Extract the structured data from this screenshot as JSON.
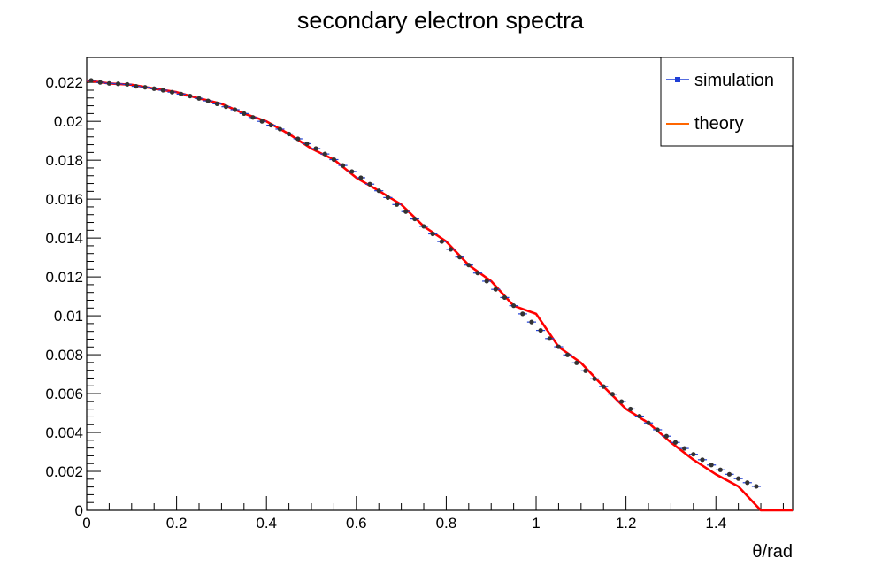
{
  "chart_data": {
    "type": "scatter",
    "title": "secondary electron spectra",
    "xlabel": "θ/rad",
    "ylabel": "",
    "xlim": [
      0,
      1.5708
    ],
    "ylim": [
      0,
      0.0222
    ],
    "x_ticks": [
      "0",
      "0.2",
      "0.4",
      "0.6",
      "0.8",
      "1",
      "1.2",
      "1.4"
    ],
    "x_tick_values": [
      0,
      0.2,
      0.4,
      0.6,
      0.8,
      1.0,
      1.2,
      1.4
    ],
    "y_ticks": [
      "0",
      "0.002",
      "0.004",
      "0.006",
      "0.008",
      "0.01",
      "0.012",
      "0.014",
      "0.016",
      "0.018",
      "0.02",
      "0.022"
    ],
    "y_tick_values": [
      0,
      0.002,
      0.004,
      0.006,
      0.008,
      0.01,
      0.012,
      0.014,
      0.016,
      0.018,
      0.02,
      0.022
    ],
    "grid": false,
    "legend_position": "top-right",
    "series": [
      {
        "name": "simulation",
        "kind": "points",
        "color": "#1f3fd6",
        "marker_color": "#333333",
        "x_error": 0.01,
        "x": [
          0.01,
          0.03,
          0.05,
          0.07,
          0.09,
          0.11,
          0.13,
          0.15,
          0.17,
          0.19,
          0.21,
          0.23,
          0.25,
          0.27,
          0.29,
          0.31,
          0.33,
          0.35,
          0.37,
          0.39,
          0.41,
          0.43,
          0.45,
          0.47,
          0.49,
          0.51,
          0.53,
          0.55,
          0.57,
          0.59,
          0.61,
          0.63,
          0.65,
          0.67,
          0.69,
          0.71,
          0.73,
          0.75,
          0.77,
          0.79,
          0.81,
          0.83,
          0.85,
          0.87,
          0.89,
          0.91,
          0.93,
          0.95,
          0.97,
          0.99,
          1.01,
          1.03,
          1.05,
          1.07,
          1.09,
          1.11,
          1.13,
          1.15,
          1.17,
          1.19,
          1.21,
          1.23,
          1.25,
          1.27,
          1.29,
          1.31,
          1.33,
          1.35,
          1.37,
          1.39,
          1.41,
          1.43,
          1.45,
          1.47,
          1.49
        ],
        "y": [
          0.0221,
          0.022,
          0.02195,
          0.02193,
          0.0219,
          0.0218,
          0.02175,
          0.02168,
          0.0216,
          0.0215,
          0.0214,
          0.0213,
          0.02118,
          0.02105,
          0.0209,
          0.02075,
          0.0206,
          0.0204,
          0.0202,
          0.02,
          0.0198,
          0.0196,
          0.01935,
          0.0191,
          0.01885,
          0.0186,
          0.01832,
          0.01803,
          0.01773,
          0.01742,
          0.0171,
          0.01677,
          0.01643,
          0.01608,
          0.01572,
          0.01536,
          0.01498,
          0.0146,
          0.01421,
          0.01382,
          0.01342,
          0.01302,
          0.01261,
          0.0122,
          0.01178,
          0.01136,
          0.01094,
          0.01052,
          0.0101,
          0.00968,
          0.00925,
          0.00883,
          0.00841,
          0.00799,
          0.00758,
          0.00717,
          0.00676,
          0.00636,
          0.00597,
          0.00559,
          0.00521,
          0.00484,
          0.00449,
          0.00414,
          0.00381,
          0.00349,
          0.00318,
          0.00288,
          0.0026,
          0.00233,
          0.00208,
          0.00185,
          0.00163,
          0.00142,
          0.00123
        ]
      },
      {
        "name": "theory",
        "kind": "line",
        "color": "#ff0000",
        "legend_color": "#ff6600",
        "x": [
          0.0,
          0.05,
          0.1,
          0.15,
          0.2,
          0.25,
          0.3,
          0.35,
          0.4,
          0.45,
          0.5,
          0.55,
          0.6,
          0.65,
          0.7,
          0.75,
          0.8,
          0.85,
          0.9,
          0.95,
          1.0,
          1.05,
          1.1,
          1.15,
          1.2,
          1.25,
          1.3,
          1.35,
          1.4,
          1.45,
          1.5,
          1.55,
          1.5708
        ],
        "y": [
          0.0221,
          0.02195,
          0.02188,
          0.02168,
          0.0215,
          0.02118,
          0.0209,
          0.0204,
          0.02,
          0.01935,
          0.0186,
          0.01803,
          0.0171,
          0.01643,
          0.01572,
          0.0146,
          0.01382,
          0.01261,
          0.01178,
          0.01052,
          0.0101,
          0.00841,
          0.00758,
          0.00636,
          0.00521,
          0.00449,
          0.00349,
          0.0026,
          0.00185,
          0.00123,
          0.0,
          0.0,
          0.0
        ]
      }
    ]
  }
}
